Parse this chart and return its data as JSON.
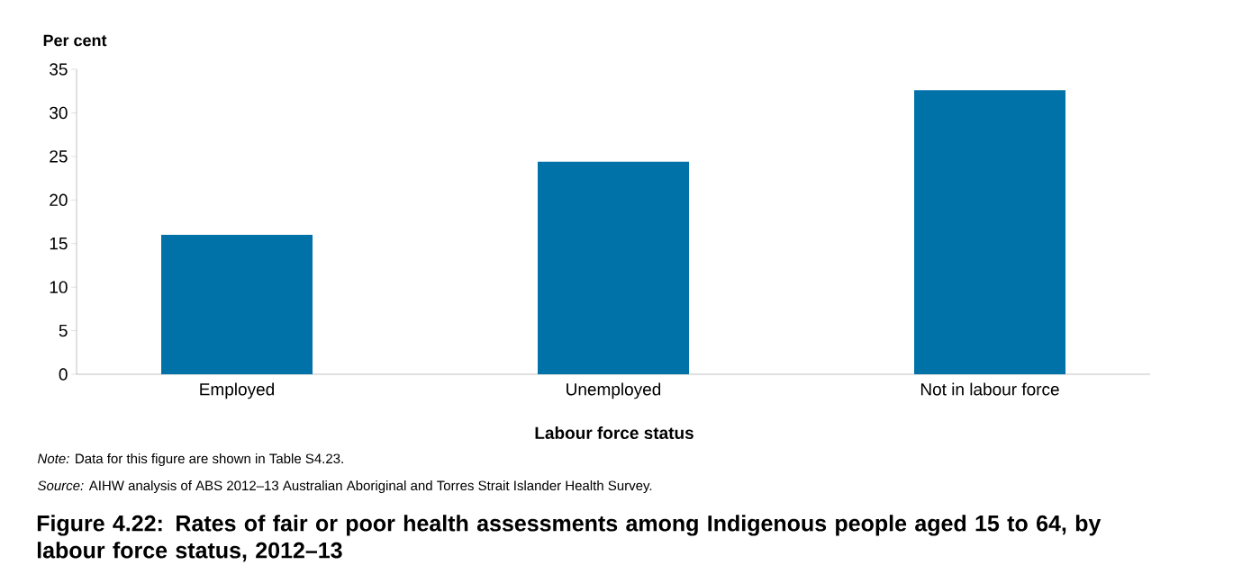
{
  "chart_data": {
    "type": "bar",
    "title": "Figure 4.22: Rates of fair or poor health assessments among Indigenous people aged 15 to 64, by labour force status, 2012–13",
    "xlabel": "Labour force status",
    "ylabel": "Per cent",
    "categories": [
      "Employed",
      "Unemployed",
      "Not in labour force"
    ],
    "values": [
      16.0,
      24.4,
      32.6
    ],
    "color": "#0072a8",
    "ylim": [
      0,
      35
    ],
    "yticks": [
      0,
      5,
      10,
      15,
      20,
      25,
      30,
      35
    ],
    "annotations": [
      "*Note:* Data for this figure are shown in Table S4.23.",
      "*Source:* AIHW analysis of ABS 2012–13 Australian Aboriginal and Torres Strait Islander Health Survey."
    ]
  }
}
